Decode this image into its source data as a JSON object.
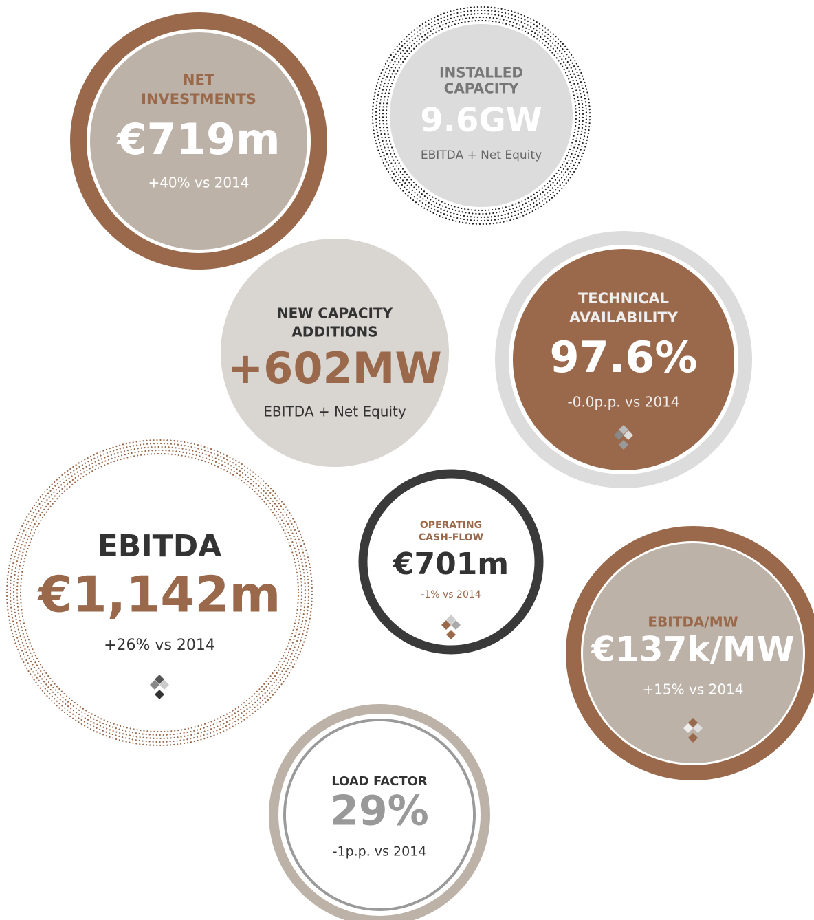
{
  "circles": [
    {
      "title_lines": [
        "NET",
        "INVESTMENTS"
      ],
      "value": "€719m",
      "subtitle": "+40% vs 2014"
    },
    {
      "title_lines": [
        "INSTALLED",
        "CAPACITY"
      ],
      "value": "9.6GW",
      "subtitle": "EBITDA + Net Equity"
    },
    {
      "title_lines": [
        "NEW CAPACITY",
        "ADDITIONS"
      ],
      "value": "+602MW",
      "subtitle": "EBITDA + Net Equity"
    },
    {
      "title_lines": [
        "TECHNICAL",
        "AVAILABILITY"
      ],
      "value": "97.6%",
      "subtitle": "-0.0p.p. vs 2014"
    },
    {
      "title_lines": [
        "EBITDA"
      ],
      "value": "€1,142m",
      "subtitle": "+26% vs 2014"
    },
    {
      "title_lines": [
        "OPERATING",
        "CASH-FLOW"
      ],
      "value": "€701m",
      "subtitle": "-1% vs 2014"
    },
    {
      "title_lines": [
        "EBITDA/MW"
      ],
      "value": "€137k/MW",
      "subtitle": "+15% vs 2014"
    },
    {
      "title_lines": [
        "LOAD FACTOR"
      ],
      "value": "29%",
      "subtitle": "-1p.p. vs 2014"
    }
  ]
}
